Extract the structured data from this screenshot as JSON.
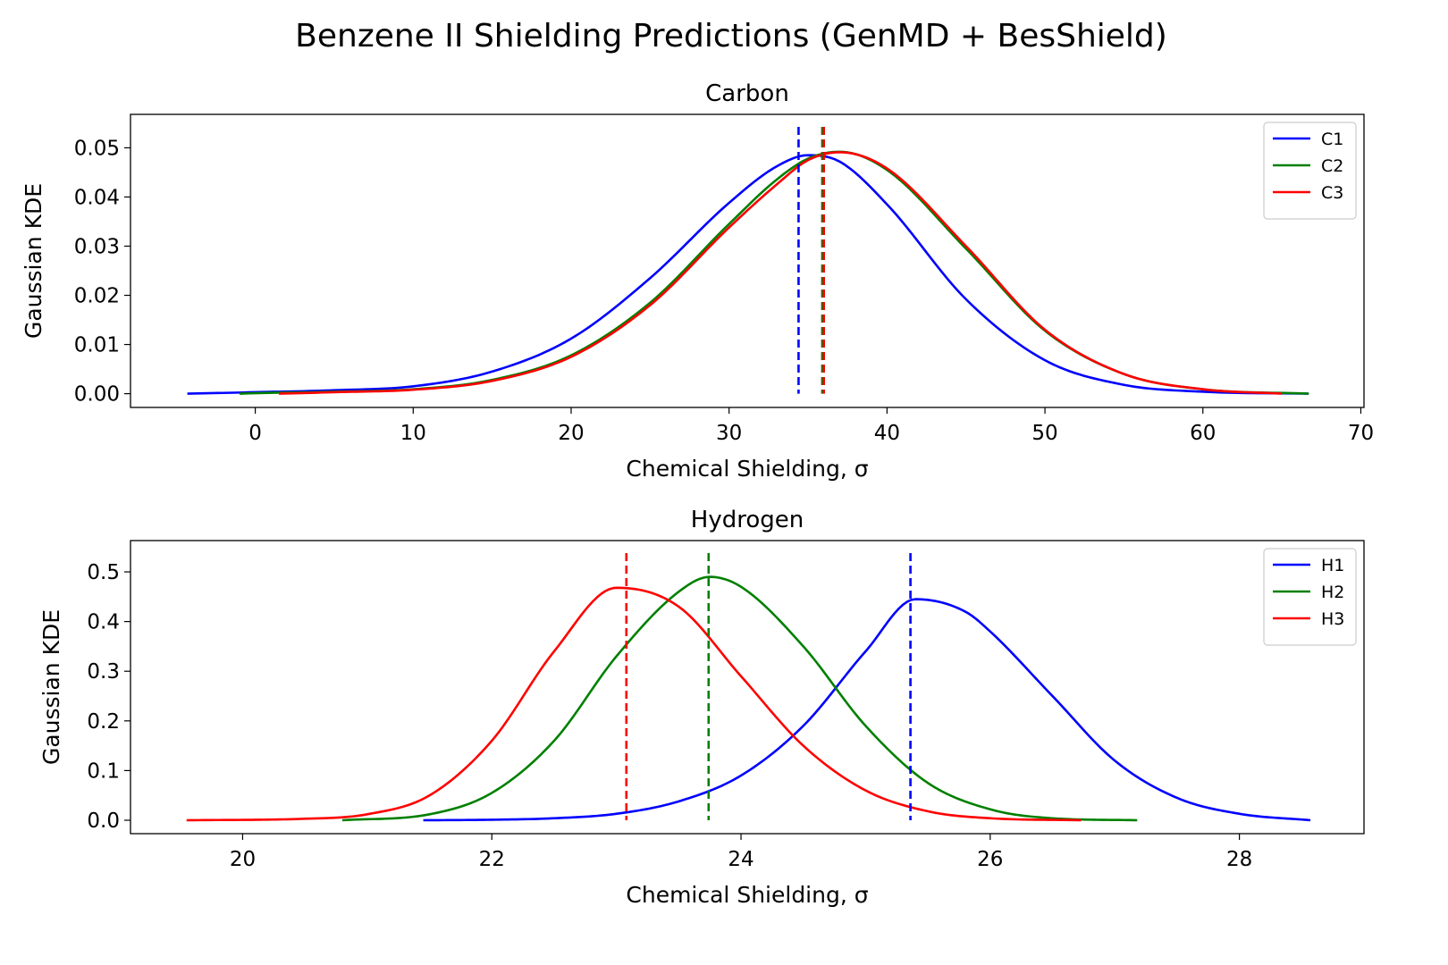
{
  "figure": {
    "title": "Benzene II Shielding Predictions (GenMD + BesShield)"
  },
  "chart_data": [
    {
      "type": "line",
      "title": "Carbon",
      "xlabel": "Chemical Shielding, σ",
      "ylabel": "Gaussian KDE",
      "xlim": [
        -7.9,
        70.2
      ],
      "ylim": [
        -0.0028,
        0.0568
      ],
      "xticks": [
        0,
        10,
        20,
        30,
        40,
        50,
        60,
        70
      ],
      "xtick_labels": [
        "0",
        "10",
        "20",
        "30",
        "40",
        "50",
        "60",
        "70"
      ],
      "yticks": [
        0.0,
        0.01,
        0.02,
        0.03,
        0.04,
        0.05
      ],
      "ytick_labels": [
        "0.00",
        "0.01",
        "0.02",
        "0.03",
        "0.04",
        "0.05"
      ],
      "legend_position": "top-right",
      "series": [
        {
          "name": "C1",
          "color": "#0000ff",
          "mean_marker": 34.4,
          "x": [
            -4.3,
            0,
            5,
            10,
            15,
            20,
            25,
            30,
            33,
            35,
            37,
            40,
            45,
            50,
            55,
            60,
            66.7
          ],
          "y": [
            0.0,
            0.0003,
            0.0007,
            0.0015,
            0.0045,
            0.0112,
            0.0235,
            0.0388,
            0.0462,
            0.0485,
            0.0472,
            0.0385,
            0.0192,
            0.0068,
            0.0018,
            0.0004,
            0.0
          ]
        },
        {
          "name": "C2",
          "color": "#008000",
          "mean_marker": 35.9,
          "x": [
            -1.0,
            0,
            5,
            10,
            15,
            20,
            25,
            30,
            33,
            35,
            37,
            40,
            45,
            50,
            55,
            60,
            66.7
          ],
          "y": [
            0.0,
            0.0001,
            0.0004,
            0.0009,
            0.0028,
            0.0078,
            0.0185,
            0.0345,
            0.0435,
            0.0478,
            0.0492,
            0.0455,
            0.0295,
            0.0128,
            0.004,
            0.0009,
            0.0
          ]
        },
        {
          "name": "C3",
          "color": "#ff0000",
          "mean_marker": 36.0,
          "x": [
            1.5,
            5,
            10,
            15,
            20,
            25,
            30,
            33,
            35,
            37,
            40,
            45,
            50,
            55,
            60,
            65
          ],
          "y": [
            0.0,
            0.0003,
            0.0008,
            0.0026,
            0.0075,
            0.018,
            0.0338,
            0.0425,
            0.0475,
            0.0491,
            0.0458,
            0.03,
            0.013,
            0.004,
            0.0009,
            0.0
          ]
        }
      ]
    },
    {
      "type": "line",
      "title": "Hydrogen",
      "xlabel": "Chemical Shielding, σ",
      "ylabel": "Gaussian KDE",
      "xlim": [
        19.1,
        29.0
      ],
      "ylim": [
        -0.027,
        0.563
      ],
      "xticks": [
        20,
        22,
        24,
        26,
        28
      ],
      "xtick_labels": [
        "20",
        "22",
        "24",
        "26",
        "28"
      ],
      "yticks": [
        0.0,
        0.1,
        0.2,
        0.3,
        0.4,
        0.5
      ],
      "ytick_labels": [
        "0.0",
        "0.1",
        "0.2",
        "0.3",
        "0.4",
        "0.5"
      ],
      "legend_position": "top-right",
      "series": [
        {
          "name": "H1",
          "color": "#0000ff",
          "mean_marker": 25.36,
          "x": [
            21.45,
            22.0,
            22.5,
            23.0,
            23.5,
            24.0,
            24.5,
            25.0,
            25.4,
            25.8,
            26.0,
            26.5,
            27.0,
            27.5,
            28.0,
            28.57
          ],
          "y": [
            0.0,
            0.001,
            0.004,
            0.013,
            0.038,
            0.09,
            0.19,
            0.34,
            0.445,
            0.42,
            0.38,
            0.25,
            0.12,
            0.045,
            0.013,
            0.0
          ]
        },
        {
          "name": "H2",
          "color": "#008000",
          "mean_marker": 23.74,
          "x": [
            20.8,
            21.5,
            22.0,
            22.5,
            23.0,
            23.5,
            23.75,
            24.0,
            24.5,
            25.0,
            25.5,
            26.0,
            26.5,
            27.18
          ],
          "y": [
            0.0,
            0.012,
            0.055,
            0.16,
            0.33,
            0.46,
            0.49,
            0.47,
            0.35,
            0.19,
            0.075,
            0.022,
            0.004,
            0.0
          ]
        },
        {
          "name": "H3",
          "color": "#ff0000",
          "mean_marker": 23.08,
          "x": [
            19.55,
            20.5,
            21.0,
            21.5,
            22.0,
            22.5,
            23.0,
            23.5,
            24.0,
            24.5,
            25.0,
            25.5,
            26.0,
            26.73
          ],
          "y": [
            0.0,
            0.003,
            0.012,
            0.05,
            0.16,
            0.34,
            0.468,
            0.43,
            0.29,
            0.15,
            0.06,
            0.018,
            0.004,
            0.0
          ]
        }
      ]
    }
  ]
}
